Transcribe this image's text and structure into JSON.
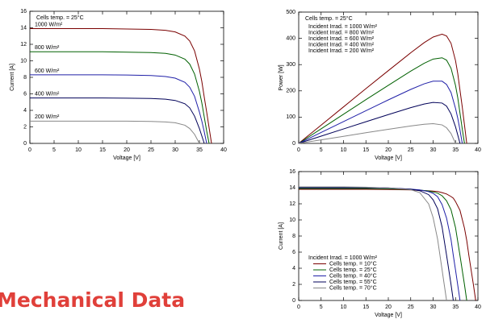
{
  "heading": "Mechanical Data",
  "chart_data": [
    {
      "type": "line",
      "annotation": "Cells temp. = 25°C",
      "x_label": "Voltage [V]",
      "y_label": "Current [A]",
      "xlim": [
        0,
        40
      ],
      "ylim": [
        0,
        16
      ],
      "xticks": [
        0,
        5,
        10,
        15,
        20,
        25,
        30,
        35,
        40
      ],
      "yticks": [
        0,
        2,
        4,
        6,
        8,
        10,
        12,
        14,
        16
      ],
      "legend": "on-curve",
      "legend_swatches": false,
      "x": [
        0,
        5,
        10,
        15,
        20,
        25,
        28,
        30,
        32,
        33,
        34,
        35,
        35.5,
        36,
        36.5,
        37,
        37.5
      ],
      "series": [
        {
          "name": "1000 W/m²",
          "color": "#7a0000",
          "values": [
            13.9,
            13.9,
            13.9,
            13.9,
            13.85,
            13.8,
            13.7,
            13.5,
            13.0,
            12.4,
            11.2,
            9.0,
            7.5,
            5.6,
            3.8,
            1.9,
            0
          ]
        },
        {
          "name": "800 W/m²",
          "color": "#006000",
          "values": [
            11.1,
            11.1,
            11.1,
            11.1,
            11.05,
            11.0,
            10.9,
            10.7,
            10.2,
            9.6,
            8.4,
            6.3,
            4.9,
            3.2,
            1.5,
            0,
            null
          ]
        },
        {
          "name": "600 W/m²",
          "color": "#2020a8",
          "values": [
            8.3,
            8.3,
            8.3,
            8.3,
            8.28,
            8.22,
            8.1,
            7.9,
            7.4,
            6.8,
            5.7,
            3.8,
            2.7,
            1.4,
            0,
            null,
            null
          ]
        },
        {
          "name": "400 W/m²",
          "color": "#000058",
          "values": [
            5.5,
            5.5,
            5.5,
            5.5,
            5.48,
            5.44,
            5.35,
            5.2,
            4.8,
            4.3,
            3.3,
            1.8,
            0.9,
            0,
            null,
            null,
            null
          ]
        },
        {
          "name": "200 W/m²",
          "color": "#888888",
          "values": [
            2.7,
            2.7,
            2.7,
            2.7,
            2.69,
            2.66,
            2.6,
            2.5,
            2.2,
            1.8,
            1.1,
            0,
            null,
            null,
            null,
            null,
            null
          ]
        }
      ]
    },
    {
      "type": "line",
      "annotation": "Cells temp. = 25°C",
      "x_label": "Voltage [V]",
      "y_label": "Power [W]",
      "xlim": [
        0,
        40
      ],
      "ylim": [
        0,
        500
      ],
      "xticks": [
        0,
        5,
        10,
        15,
        20,
        25,
        30,
        35,
        40
      ],
      "yticks": [
        0,
        100,
        200,
        300,
        400,
        500
      ],
      "legend": "top-left",
      "legend_swatches": false,
      "x": [
        0,
        5,
        10,
        15,
        20,
        25,
        28,
        30,
        32,
        33,
        34,
        35,
        35.5,
        36,
        36.5,
        37,
        37.5
      ],
      "series": [
        {
          "name": "Incident Irrad. = 1000 W/m²",
          "color": "#7a0000",
          "values": [
            0,
            69.5,
            139,
            208.5,
            277,
            345,
            383.6,
            405,
            416,
            409,
            381,
            315,
            266,
            202,
            139,
            70,
            0
          ]
        },
        {
          "name": "Incident Irrad. = 800 W/m²",
          "color": "#006000",
          "values": [
            0,
            55.5,
            111,
            166.5,
            221,
            275,
            305,
            321,
            326,
            317,
            286,
            220.5,
            174,
            115,
            55,
            0,
            null
          ]
        },
        {
          "name": "Incident Irrad. = 600 W/m²",
          "color": "#2020a8",
          "values": [
            0,
            41.5,
            83,
            124.5,
            165.6,
            205.5,
            226.8,
            237,
            236.8,
            224.4,
            193.8,
            133,
            95.9,
            50.4,
            0,
            null,
            null
          ]
        },
        {
          "name": "Incident Irrad. = 400 W/m²",
          "color": "#000058",
          "values": [
            0,
            27.5,
            55,
            82.5,
            109.6,
            136,
            149.8,
            156,
            153.6,
            141.9,
            112.2,
            63,
            32,
            0,
            null,
            null,
            null
          ]
        },
        {
          "name": "Incident Irrad. = 200 W/m²",
          "color": "#888888",
          "values": [
            0,
            13.5,
            27,
            40.5,
            53.8,
            66.5,
            72.8,
            75,
            70.4,
            59.4,
            37.4,
            0,
            null,
            null,
            null,
            null,
            null
          ]
        }
      ]
    },
    {
      "type": "line",
      "legend_title": "Incident Irrad. = 1000 W/m²",
      "x_label": "Voltage [V]",
      "y_label": "Current [A]",
      "xlim": [
        0,
        40
      ],
      "ylim": [
        0,
        16
      ],
      "xticks": [
        0,
        5,
        10,
        15,
        20,
        25,
        30,
        35,
        40
      ],
      "yticks": [
        0,
        2,
        4,
        6,
        8,
        10,
        12,
        14,
        16
      ],
      "legend": "bottom-left",
      "legend_swatches": true,
      "x": [
        0,
        5,
        10,
        15,
        20,
        25,
        27,
        29,
        30,
        31,
        32,
        33,
        34,
        34.5,
        35,
        36,
        37,
        37.5,
        38,
        39,
        39.5
      ],
      "series": [
        {
          "name": "Cells temp. = 10°C",
          "color": "#7a0000",
          "values": [
            13.8,
            13.8,
            13.8,
            13.8,
            13.77,
            13.72,
            13.66,
            13.61,
            13.57,
            13.52,
            13.39,
            13.22,
            12.9,
            12.7,
            12.28,
            11.18,
            8.97,
            7.45,
            5.52,
            1.93,
            0
          ]
        },
        {
          "name": "Cells temp. = 25°C",
          "color": "#006000",
          "values": [
            13.9,
            13.9,
            13.9,
            13.9,
            13.86,
            13.76,
            13.71,
            13.59,
            13.48,
            13.32,
            13.0,
            12.37,
            11.26,
            10.15,
            9.04,
            5.56,
            1.95,
            0,
            null,
            null,
            null
          ]
        },
        {
          "name": "Cells temp. = 40°C",
          "color": "#2020a8",
          "values": [
            14.0,
            14.0,
            14.0,
            14.0,
            13.94,
            13.82,
            13.72,
            13.51,
            13.3,
            12.88,
            11.9,
            10.22,
            7.56,
            5.6,
            3.78,
            0,
            null,
            null,
            null,
            null,
            null
          ]
        },
        {
          "name": "Cells temp. = 55°C",
          "color": "#000058",
          "values": [
            14.05,
            14.05,
            14.05,
            14.02,
            13.97,
            13.81,
            13.63,
            13.14,
            12.5,
            11.38,
            9.13,
            5.62,
            1.97,
            0,
            null,
            null,
            null,
            null,
            null,
            null,
            null
          ]
        },
        {
          "name": "Cells temp. = 70°C",
          "color": "#888888",
          "values": [
            14.1,
            14.1,
            14.1,
            14.06,
            13.96,
            13.75,
            13.4,
            11.99,
            10.29,
            7.61,
            3.81,
            0,
            null,
            null,
            null,
            null,
            null,
            null,
            null,
            null,
            null
          ]
        }
      ]
    }
  ]
}
